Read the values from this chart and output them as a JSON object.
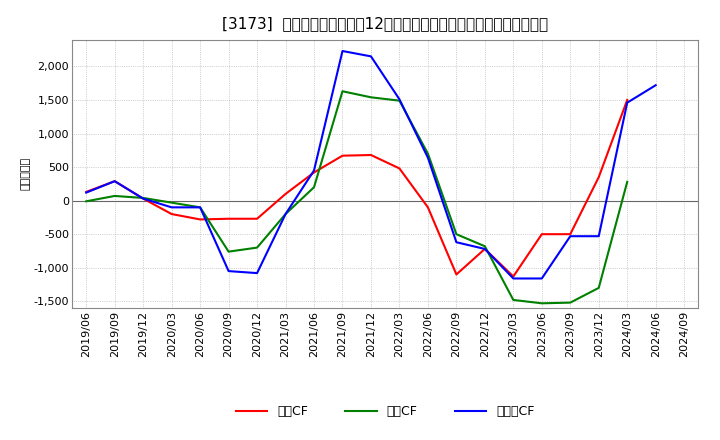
{
  "title": "[3173]  キャッシュフローの12か月移動合計の対前年同期増減額の推移",
  "ylabel": "（百万円）",
  "background_color": "#ffffff",
  "plot_bg_color": "#ffffff",
  "grid_color": "#aaaaaa",
  "x_labels": [
    "2019/06",
    "2019/09",
    "2019/12",
    "2020/03",
    "2020/06",
    "2020/09",
    "2020/12",
    "2021/03",
    "2021/06",
    "2021/09",
    "2021/12",
    "2022/03",
    "2022/06",
    "2022/09",
    "2022/12",
    "2023/03",
    "2023/06",
    "2023/09",
    "2023/12",
    "2024/03",
    "2024/06",
    "2024/09"
  ],
  "operating_cf": [
    130,
    290,
    30,
    -200,
    -280,
    -270,
    -270,
    100,
    420,
    670,
    680,
    480,
    -100,
    -1100,
    -720,
    -1130,
    -500,
    -500,
    350,
    1500,
    null,
    null
  ],
  "investing_cf": [
    -10,
    70,
    40,
    -30,
    -100,
    -760,
    -700,
    -200,
    200,
    1630,
    1540,
    1490,
    700,
    -500,
    -680,
    -1480,
    -1530,
    -1520,
    -1300,
    280,
    null,
    null
  ],
  "free_cf": [
    120,
    290,
    30,
    -100,
    -100,
    -1050,
    -1080,
    -200,
    450,
    2230,
    2150,
    1510,
    640,
    -620,
    -720,
    -1160,
    -1160,
    -530,
    -530,
    1460,
    1720,
    null
  ],
  "ylim": [
    -1600,
    2400
  ],
  "yticks": [
    -1500,
    -1000,
    -500,
    0,
    500,
    1000,
    1500,
    2000
  ],
  "line_colors": {
    "operating": "#ff0000",
    "investing": "#008000",
    "free": "#0000ff"
  },
  "legend_labels": {
    "operating": "営業CF",
    "investing": "投資CF",
    "free": "フリーCF"
  },
  "title_fontsize": 11,
  "axis_fontsize": 8,
  "ylabel_fontsize": 8,
  "legend_fontsize": 9
}
